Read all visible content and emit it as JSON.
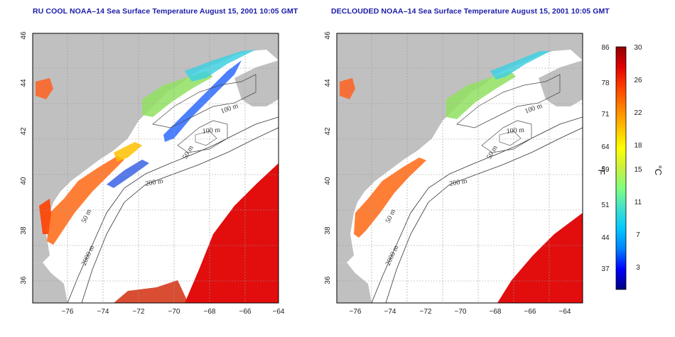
{
  "maps": [
    {
      "title": "RU COOL NOAA–14 Sea Surface Temperature August 15, 2001 10:05 GMT",
      "contour_labels": [
        "100 m",
        "100 m",
        "50 m",
        "200 m",
        "50 m",
        "2000 m"
      ]
    },
    {
      "title": "DECLOUDED NOAA–14 Sea Surface Temperature August 15, 2001 10:05 GMT",
      "contour_labels": [
        "100 m",
        "100 m",
        "50 m",
        "200 m",
        "50 m",
        "2000 m"
      ]
    }
  ],
  "axes": {
    "lon_ticks": [
      "−76",
      "−74",
      "−72",
      "−70",
      "−68",
      "−66",
      "−64"
    ],
    "lat_ticks": [
      "46",
      "44",
      "42",
      "40",
      "38",
      "36"
    ]
  },
  "colorbar": {
    "fahrenheit_ticks": [
      "86",
      "78",
      "71",
      "64",
      "59",
      "51",
      "44",
      "37"
    ],
    "celsius_ticks": [
      "30",
      "26",
      "22",
      "18",
      "15",
      "11",
      "7",
      "3"
    ],
    "fahrenheit_unit": "°F",
    "celsius_unit": "°C",
    "colors": [
      "#000080",
      "#0000ff",
      "#0080ff",
      "#00c8ff",
      "#40e0d0",
      "#80ff80",
      "#c8f040",
      "#ffff00",
      "#ffc000",
      "#ff8000",
      "#ff4000",
      "#e00000",
      "#900000"
    ]
  },
  "colors": {
    "land": "#c0c0c0",
    "ocean": "#ffffff",
    "grid": "#9a9a9a",
    "title": "#1a1aa8"
  }
}
